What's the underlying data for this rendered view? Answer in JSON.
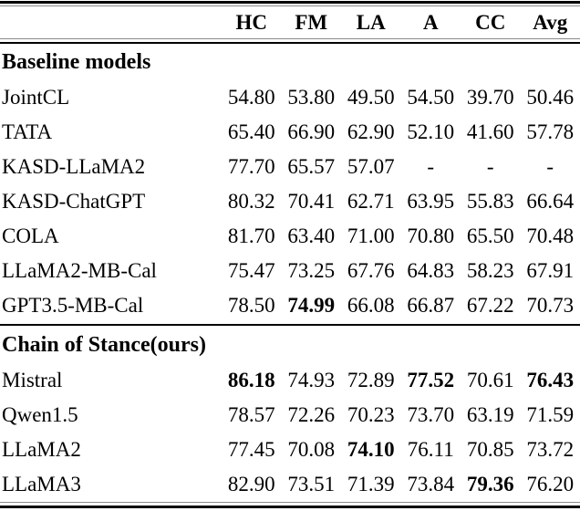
{
  "table": {
    "columns": [
      "HC",
      "FM",
      "LA",
      "A",
      "CC",
      "Avg"
    ],
    "missing_value": "-",
    "sections": [
      {
        "title": "Baseline models",
        "rows": [
          {
            "label": "JointCL",
            "values": [
              "54.80",
              "53.80",
              "49.50",
              "54.50",
              "39.70",
              "50.46"
            ],
            "bold_cols": []
          },
          {
            "label": "TATA",
            "values": [
              "65.40",
              "66.90",
              "62.90",
              "52.10",
              "41.60",
              "57.78"
            ],
            "bold_cols": []
          },
          {
            "label": "KASD-LLaMA2",
            "values": [
              "77.70",
              "65.57",
              "57.07",
              "-",
              "-",
              "-"
            ],
            "bold_cols": []
          },
          {
            "label": "KASD-ChatGPT",
            "values": [
              "80.32",
              "70.41",
              "62.71",
              "63.95",
              "55.83",
              "66.64"
            ],
            "bold_cols": []
          },
          {
            "label": "COLA",
            "values": [
              "81.70",
              "63.40",
              "71.00",
              "70.80",
              "65.50",
              "70.48"
            ],
            "bold_cols": []
          },
          {
            "label": "LLaMA2-MB-Cal",
            "values": [
              "75.47",
              "73.25",
              "67.76",
              "64.83",
              "58.23",
              "67.91"
            ],
            "bold_cols": []
          },
          {
            "label": "GPT3.5-MB-Cal",
            "values": [
              "78.50",
              "74.99",
              "66.08",
              "66.87",
              "67.22",
              "70.73"
            ],
            "bold_cols": [
              1
            ]
          }
        ]
      },
      {
        "title": "Chain of Stance(ours)",
        "rows": [
          {
            "label": "Mistral",
            "values": [
              "86.18",
              "74.93",
              "72.89",
              "77.52",
              "70.61",
              "76.43"
            ],
            "bold_cols": [
              0,
              3,
              5
            ]
          },
          {
            "label": "Qwen1.5",
            "values": [
              "78.57",
              "72.26",
              "70.23",
              "73.70",
              "63.19",
              "71.59"
            ],
            "bold_cols": []
          },
          {
            "label": "LLaMA2",
            "values": [
              "77.45",
              "70.08",
              "74.10",
              "76.11",
              "70.85",
              "73.72"
            ],
            "bold_cols": [
              2
            ]
          },
          {
            "label": "LLaMA3",
            "values": [
              "82.90",
              "73.51",
              "71.39",
              "73.84",
              "79.36",
              "76.20"
            ],
            "bold_cols": [
              4
            ]
          }
        ]
      }
    ]
  }
}
